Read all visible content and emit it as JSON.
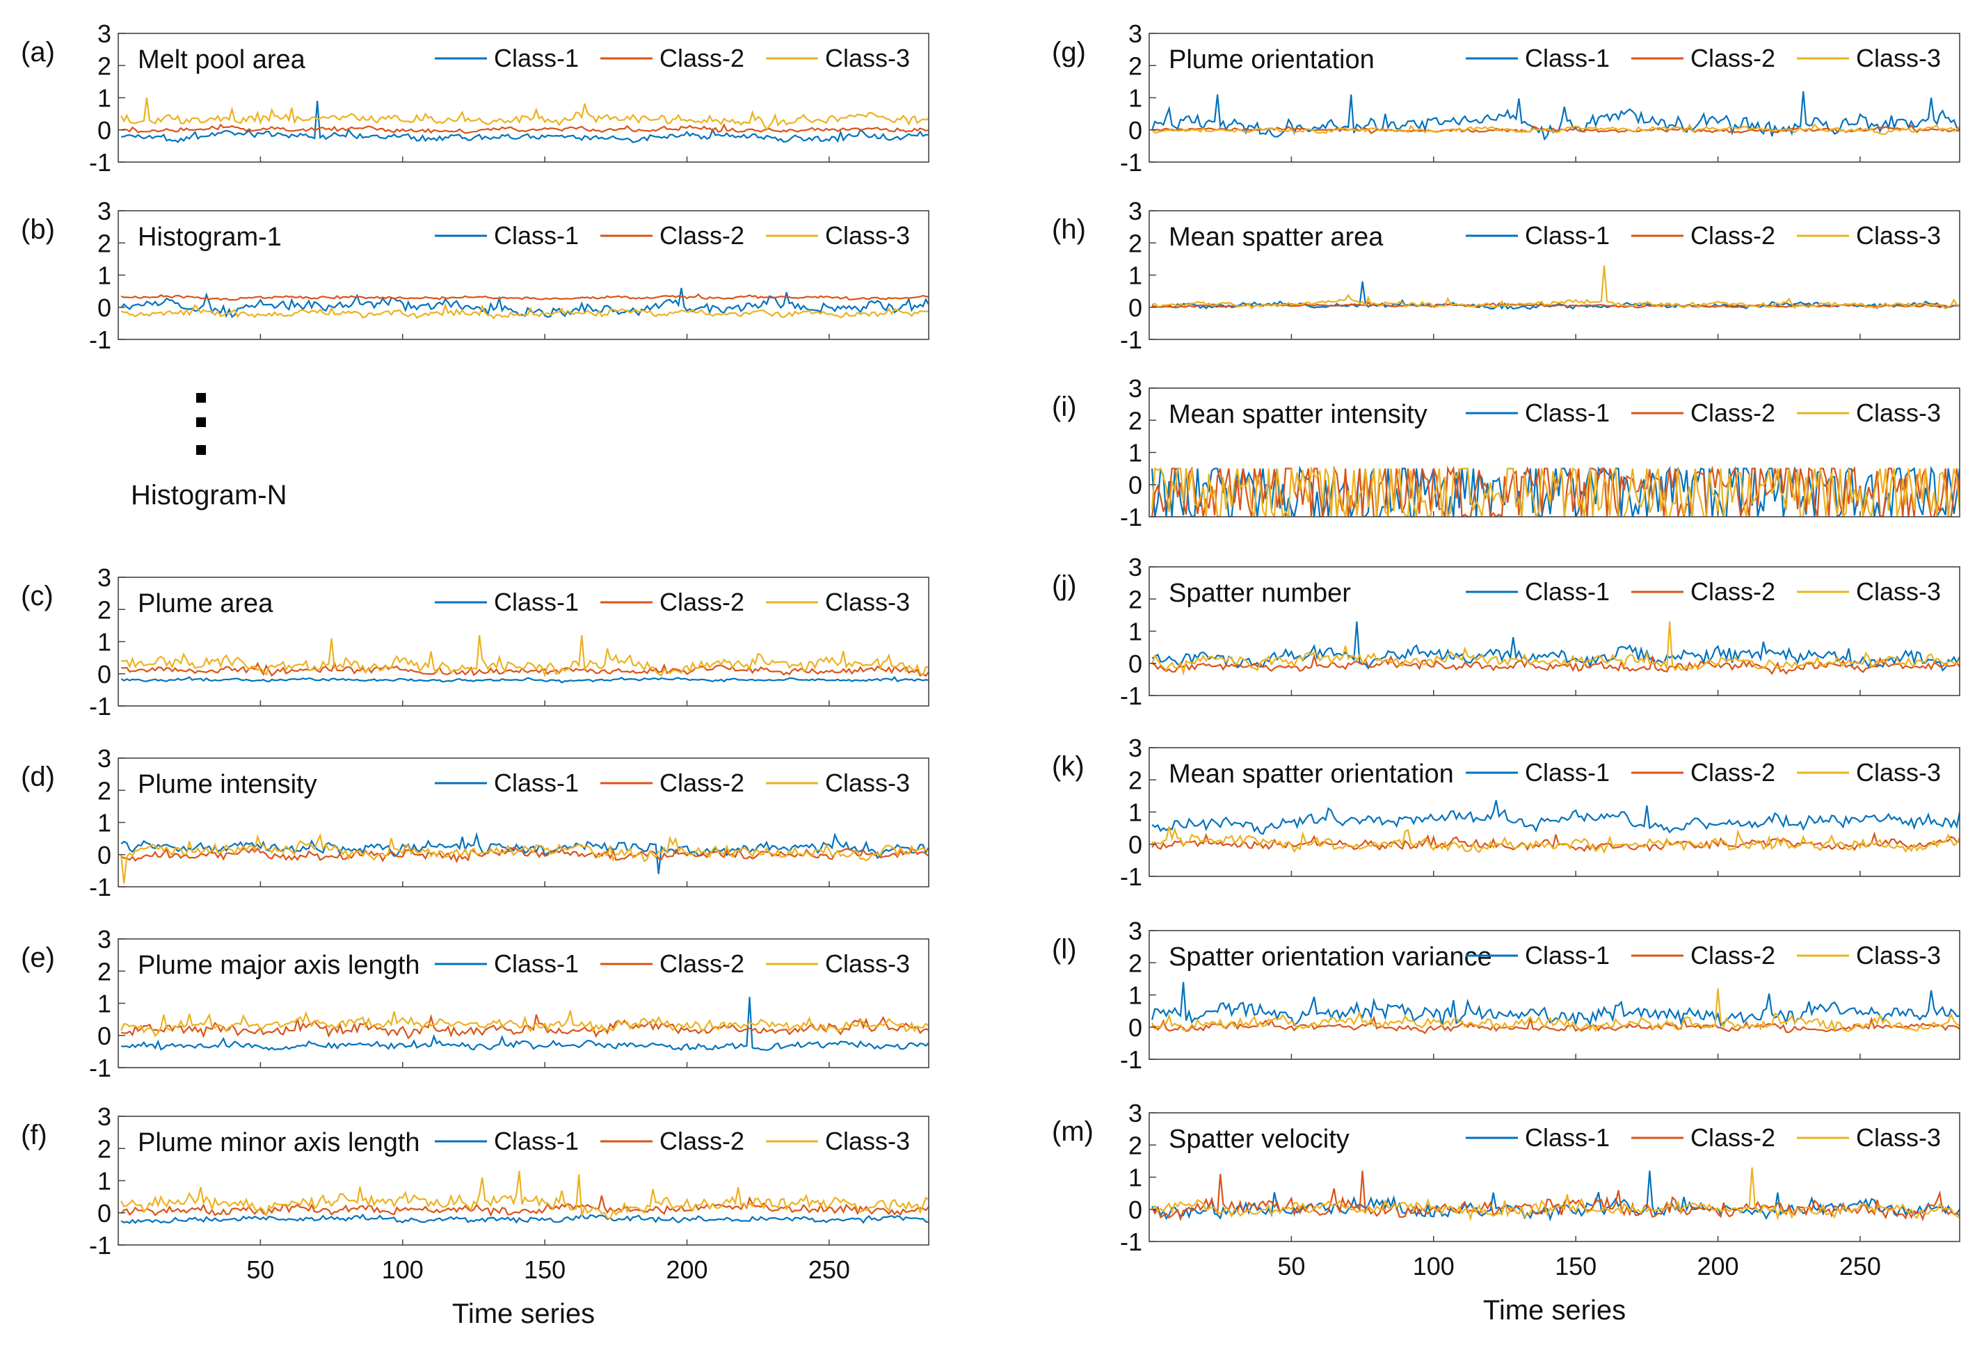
{
  "colors": {
    "class1": "#0072BD",
    "class2": "#D95319",
    "class3": "#EDB120",
    "axis": "#444444",
    "text": "#111111"
  },
  "legend_entries": [
    "Class-1",
    "Class-2",
    "Class-3"
  ],
  "xlabel": "Time series",
  "histogram_n_label": "Histogram-N",
  "ellipsis_marker": "⋮",
  "chart_data": [
    {
      "id": "a",
      "panel_label": "(a)",
      "title": "Melt pool area",
      "type": "line",
      "xlim": [
        0,
        285
      ],
      "ylim": [
        -1,
        3
      ],
      "yticks": [
        -1,
        0,
        1,
        2,
        3
      ],
      "show_xticks": false,
      "series": [
        {
          "name": "Class-1",
          "mean": -0.2,
          "amp": 0.15,
          "spikes": [
            [
              70,
              0.9
            ]
          ]
        },
        {
          "name": "Class-2",
          "mean": 0.0,
          "amp": 0.1,
          "spikes": []
        },
        {
          "name": "Class-3",
          "mean": 0.3,
          "amp": 0.2,
          "spikes": [
            [
              10,
              1.0
            ]
          ]
        }
      ]
    },
    {
      "id": "b",
      "panel_label": "(b)",
      "title": "Histogram-1",
      "type": "line",
      "xlim": [
        0,
        285
      ],
      "ylim": [
        -1,
        3
      ],
      "yticks": [
        -1,
        0,
        1,
        2,
        3
      ],
      "show_xticks": false,
      "series": [
        {
          "name": "Class-1",
          "mean": 0.0,
          "amp": 0.25,
          "spikes": [
            [
              198,
              0.6
            ]
          ]
        },
        {
          "name": "Class-2",
          "mean": 0.3,
          "amp": 0.06,
          "spikes": []
        },
        {
          "name": "Class-3",
          "mean": -0.2,
          "amp": 0.15,
          "spikes": []
        }
      ]
    },
    {
      "id": "c",
      "panel_label": "(c)",
      "title": "Plume area",
      "type": "line",
      "xlim": [
        0,
        285
      ],
      "ylim": [
        -1,
        3
      ],
      "yticks": [
        -1,
        0,
        1,
        2,
        3
      ],
      "show_xticks": false,
      "series": [
        {
          "name": "Class-1",
          "mean": -0.2,
          "amp": 0.06,
          "spikes": []
        },
        {
          "name": "Class-2",
          "mean": 0.1,
          "amp": 0.15,
          "spikes": []
        },
        {
          "name": "Class-3",
          "mean": 0.3,
          "amp": 0.3,
          "spikes": [
            [
              127,
              1.2
            ],
            [
              163,
              1.2
            ],
            [
              75,
              1.1
            ]
          ]
        }
      ]
    },
    {
      "id": "d",
      "panel_label": "(d)",
      "title": "Plume intensity",
      "type": "line",
      "xlim": [
        0,
        285
      ],
      "ylim": [
        -1,
        3
      ],
      "yticks": [
        -1,
        0,
        1,
        2,
        3
      ],
      "show_xticks": false,
      "series": [
        {
          "name": "Class-1",
          "mean": 0.2,
          "amp": 0.25,
          "spikes": [
            [
              190,
              -0.6
            ]
          ]
        },
        {
          "name": "Class-2",
          "mean": 0.0,
          "amp": 0.2,
          "spikes": []
        },
        {
          "name": "Class-3",
          "mean": 0.1,
          "amp": 0.25,
          "spikes": [
            [
              2,
              -0.9
            ]
          ]
        }
      ]
    },
    {
      "id": "e",
      "panel_label": "(e)",
      "title": "Plume major axis length",
      "type": "line",
      "xlim": [
        0,
        285
      ],
      "ylim": [
        -1,
        3
      ],
      "yticks": [
        -1,
        0,
        1,
        2,
        3
      ],
      "show_xticks": false,
      "series": [
        {
          "name": "Class-1",
          "mean": -0.3,
          "amp": 0.15,
          "spikes": [
            [
              222,
              1.2
            ]
          ]
        },
        {
          "name": "Class-2",
          "mean": 0.2,
          "amp": 0.25,
          "spikes": []
        },
        {
          "name": "Class-3",
          "mean": 0.3,
          "amp": 0.25,
          "spikes": []
        }
      ]
    },
    {
      "id": "f",
      "panel_label": "(f)",
      "title": "Plume minor axis length",
      "type": "line",
      "xlim": [
        0,
        285
      ],
      "ylim": [
        -1,
        3
      ],
      "yticks": [
        -1,
        0,
        1,
        2,
        3
      ],
      "show_xticks": true,
      "xticks": [
        50,
        100,
        150,
        200,
        250
      ],
      "series": [
        {
          "name": "Class-1",
          "mean": -0.2,
          "amp": 0.12,
          "spikes": []
        },
        {
          "name": "Class-2",
          "mean": 0.1,
          "amp": 0.2,
          "spikes": []
        },
        {
          "name": "Class-3",
          "mean": 0.3,
          "amp": 0.3,
          "spikes": [
            [
              128,
              1.1
            ],
            [
              141,
              1.3
            ],
            [
              162,
              1.2
            ]
          ]
        }
      ]
    },
    {
      "id": "g",
      "panel_label": "(g)",
      "title": "Plume orientation",
      "type": "line",
      "xlim": [
        0,
        285
      ],
      "ylim": [
        -1,
        3
      ],
      "yticks": [
        -1,
        0,
        1,
        2,
        3
      ],
      "show_xticks": false,
      "series": [
        {
          "name": "Class-1",
          "mean": 0.2,
          "amp": 0.35,
          "spikes": [
            [
              24,
              1.1
            ],
            [
              71,
              1.1
            ],
            [
              230,
              1.2
            ],
            [
              275,
              1.0
            ]
          ]
        },
        {
          "name": "Class-2",
          "mean": 0.0,
          "amp": 0.08,
          "spikes": []
        },
        {
          "name": "Class-3",
          "mean": 0.0,
          "amp": 0.1,
          "spikes": []
        }
      ]
    },
    {
      "id": "h",
      "panel_label": "(h)",
      "title": "Mean spatter area",
      "type": "line",
      "xlim": [
        0,
        285
      ],
      "ylim": [
        -1,
        3
      ],
      "yticks": [
        -1,
        0,
        1,
        2,
        3
      ],
      "show_xticks": false,
      "series": [
        {
          "name": "Class-1",
          "mean": 0.05,
          "amp": 0.1,
          "spikes": [
            [
              75,
              0.8
            ]
          ]
        },
        {
          "name": "Class-2",
          "mean": 0.05,
          "amp": 0.05,
          "spikes": []
        },
        {
          "name": "Class-3",
          "mean": 0.1,
          "amp": 0.12,
          "spikes": [
            [
              160,
              1.3
            ]
          ]
        }
      ]
    },
    {
      "id": "i",
      "panel_label": "(i)",
      "title": "Mean spatter intensity",
      "type": "line",
      "xlim": [
        0,
        285
      ],
      "ylim": [
        -1,
        3
      ],
      "yticks": [
        -1,
        0,
        1,
        2,
        3
      ],
      "show_xticks": false,
      "clip_band": [
        -1,
        0.5
      ],
      "series": [
        {
          "name": "Class-1",
          "mean": -0.2,
          "amp": 0.9,
          "spikes": []
        },
        {
          "name": "Class-2",
          "mean": -0.2,
          "amp": 0.9,
          "spikes": []
        },
        {
          "name": "Class-3",
          "mean": -0.2,
          "amp": 0.9,
          "spikes": []
        }
      ]
    },
    {
      "id": "j",
      "panel_label": "(j)",
      "title": "Spatter number",
      "type": "line",
      "xlim": [
        0,
        285
      ],
      "ylim": [
        -1,
        3
      ],
      "yticks": [
        -1,
        0,
        1,
        2,
        3
      ],
      "show_xticks": false,
      "series": [
        {
          "name": "Class-1",
          "mean": 0.2,
          "amp": 0.35,
          "spikes": [
            [
              73,
              1.3
            ]
          ]
        },
        {
          "name": "Class-2",
          "mean": -0.1,
          "amp": 0.2,
          "spikes": []
        },
        {
          "name": "Class-3",
          "mean": 0.1,
          "amp": 0.25,
          "spikes": [
            [
              183,
              1.3
            ]
          ]
        }
      ]
    },
    {
      "id": "k",
      "panel_label": "(k)",
      "title": "Mean spatter orientation",
      "type": "line",
      "xlim": [
        0,
        285
      ],
      "ylim": [
        -1,
        3
      ],
      "yticks": [
        -1,
        0,
        1,
        2,
        3
      ],
      "show_xticks": false,
      "series": [
        {
          "name": "Class-1",
          "mean": 0.7,
          "amp": 0.3,
          "spikes": [
            [
              175,
              1.2
            ]
          ]
        },
        {
          "name": "Class-2",
          "mean": 0.0,
          "amp": 0.2,
          "spikes": []
        },
        {
          "name": "Class-3",
          "mean": 0.0,
          "amp": 0.25,
          "spikes": []
        }
      ]
    },
    {
      "id": "l",
      "panel_label": "(l)",
      "title": "Spatter orientation variance",
      "type": "line",
      "xlim": [
        0,
        285
      ],
      "ylim": [
        -1,
        3
      ],
      "yticks": [
        -1,
        0,
        1,
        2,
        3
      ],
      "show_xticks": false,
      "series": [
        {
          "name": "Class-1",
          "mean": 0.4,
          "amp": 0.35,
          "spikes": [
            [
              12,
              1.4
            ]
          ]
        },
        {
          "name": "Class-2",
          "mean": 0.0,
          "amp": 0.15,
          "spikes": []
        },
        {
          "name": "Class-3",
          "mean": 0.1,
          "amp": 0.25,
          "spikes": [
            [
              200,
              1.2
            ]
          ]
        }
      ]
    },
    {
      "id": "m",
      "panel_label": "(m)",
      "title": "Spatter velocity",
      "type": "line",
      "xlim": [
        0,
        285
      ],
      "ylim": [
        -1,
        3
      ],
      "yticks": [
        -1,
        0,
        1,
        2,
        3
      ],
      "show_xticks": true,
      "xticks": [
        50,
        100,
        150,
        200,
        250
      ],
      "series": [
        {
          "name": "Class-1",
          "mean": 0.0,
          "amp": 0.3,
          "spikes": [
            [
              176,
              1.2
            ]
          ]
        },
        {
          "name": "Class-2",
          "mean": 0.0,
          "amp": 0.35,
          "spikes": [
            [
              75,
              1.2
            ],
            [
              25,
              1.1
            ]
          ]
        },
        {
          "name": "Class-3",
          "mean": 0.0,
          "amp": 0.25,
          "spikes": [
            [
              212,
              1.3
            ]
          ]
        }
      ]
    }
  ]
}
